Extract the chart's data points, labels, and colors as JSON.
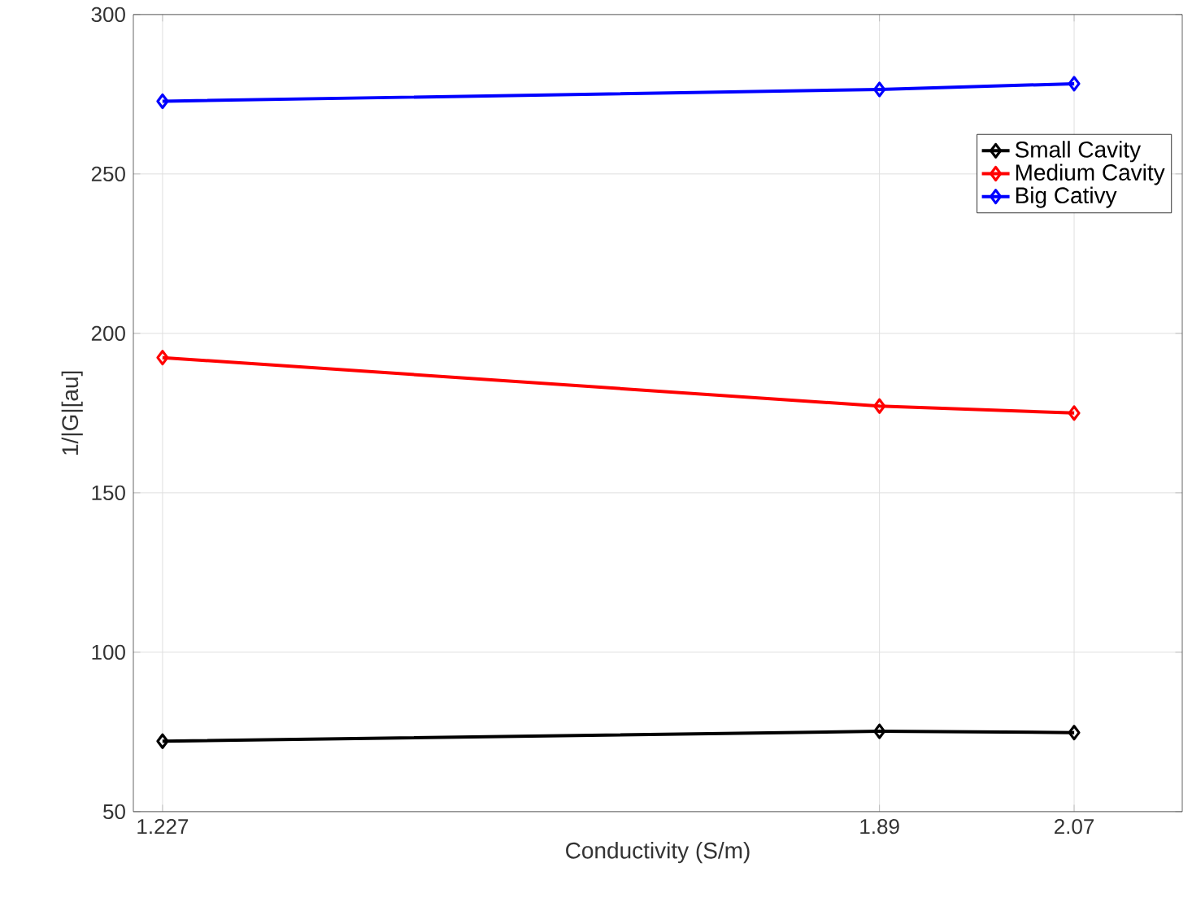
{
  "chart_data": {
    "type": "line",
    "xlabel": "Conductivity (S/m)",
    "ylabel": "1/|G|[au]",
    "x": [
      1.227,
      1.89,
      2.07
    ],
    "series": [
      {
        "name": "Small Cavity",
        "color": "#000000",
        "values": [
          72.1,
          75.2,
          74.8
        ]
      },
      {
        "name": "Medium Cavity",
        "color": "#ff0000",
        "values": [
          192.4,
          177.2,
          175
        ]
      },
      {
        "name": "Big Cativy",
        "color": "#0000ff",
        "values": [
          272.8,
          276.5,
          278.3
        ]
      }
    ],
    "xlim": [
      1.2,
      2.17
    ],
    "xticks": [
      1.227,
      1.89,
      2.07
    ],
    "ylim": [
      50,
      300
    ],
    "yticks": [
      50,
      100,
      150,
      200,
      250,
      300
    ],
    "grid": true,
    "legend": "top right",
    "marker": "diamond",
    "line_style": "solid"
  }
}
